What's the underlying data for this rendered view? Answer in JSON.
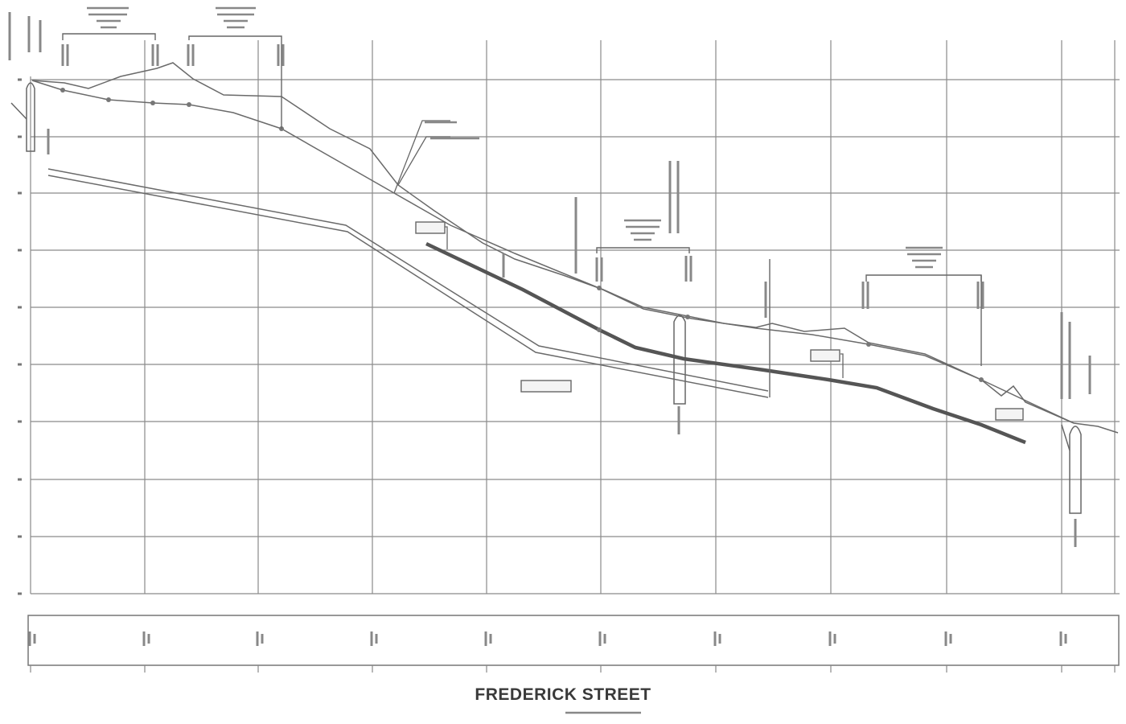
{
  "sheet": {
    "title": "FREDERICK STREET"
  },
  "profile_lines": [
    {
      "name": "existing-ground-profile"
    },
    {
      "name": "proposed-profile"
    },
    {
      "name": "upper-pipe"
    },
    {
      "name": "lower-pipe"
    },
    {
      "name": "proposed-main"
    }
  ],
  "colors": {
    "grid": "#888888",
    "line": "#666666",
    "heavy": "#555555",
    "frame": "#777777",
    "background": "#ffffff"
  }
}
